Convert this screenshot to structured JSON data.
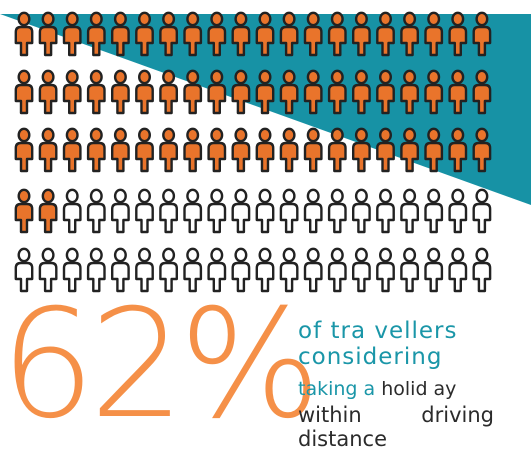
{
  "colors": {
    "background": "#ffffff",
    "band": "#1792a5",
    "figure_filled": "#e9742b",
    "figure_outline": "#222222",
    "percent": "#f59048",
    "caption_teal": "#1a96a8",
    "caption_dark": "#2b2b2b"
  },
  "icon": "person-icon",
  "figures": {
    "total": 100,
    "highlighted": 62
  },
  "stat": {
    "percent": "62%",
    "line1": "of tra vellers",
    "line2": "considering",
    "line3_teal": "taking a",
    "line3_dark": "holid ay",
    "line4_left": "within",
    "line4_right": "driving",
    "line5": "distance"
  }
}
